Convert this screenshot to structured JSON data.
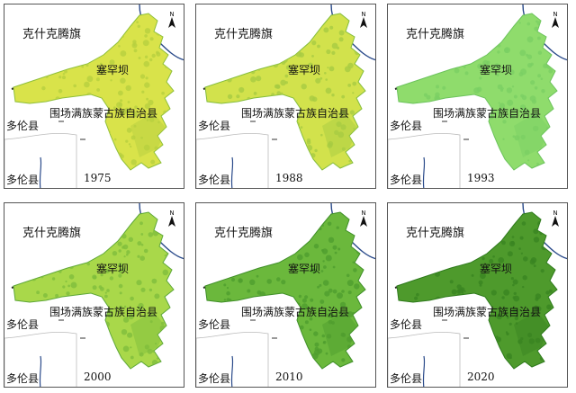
{
  "labels": {
    "banner": "克什克腾旗",
    "dam": "塞罕坝",
    "county": "围场满族蒙古族自治县",
    "duolun": "多伦县",
    "north": "N"
  },
  "panels": [
    {
      "year": "1975",
      "fill": "#d9e34a",
      "mottle": "#b7cf3f",
      "edge": "#8fbf3a"
    },
    {
      "year": "1988",
      "fill": "#d2e24c",
      "mottle": "#a8cc42",
      "edge": "#84bd3c"
    },
    {
      "year": "1993",
      "fill": "#8fdc6c",
      "mottle": "#7bd064",
      "edge": "#6cc35c"
    },
    {
      "year": "2000",
      "fill": "#a9d84a",
      "mottle": "#7fbe3c",
      "edge": "#5ea838"
    },
    {
      "year": "2010",
      "fill": "#6bb83c",
      "mottle": "#4f9e2e",
      "edge": "#3f8f28"
    },
    {
      "year": "2020",
      "fill": "#4e9a2c",
      "mottle": "#3a8422",
      "edge": "#2e7a1c"
    }
  ]
}
